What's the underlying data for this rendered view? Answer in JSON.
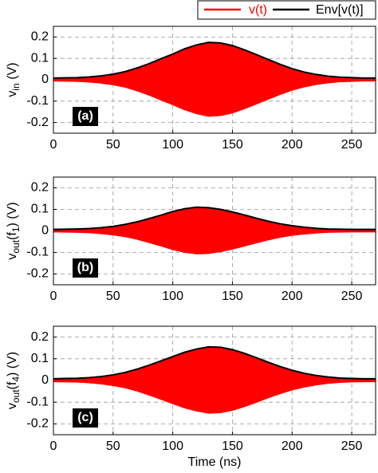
{
  "chart_data": [
    {
      "type": "line",
      "label": "(a)",
      "ylabel": [
        "v",
        "in",
        " (V)"
      ],
      "legend": "top-right",
      "grid": true,
      "x": [
        0,
        10,
        20,
        30,
        40,
        50,
        60,
        70,
        80,
        90,
        100,
        110,
        120,
        130,
        140,
        150,
        160,
        170,
        180,
        190,
        200,
        210,
        220,
        230,
        240,
        250,
        260,
        270
      ],
      "xlim": [
        0,
        270
      ],
      "xticks": [
        0,
        50,
        100,
        150,
        200,
        250
      ],
      "ylim": [
        -0.25,
        0.25
      ],
      "yticks": [
        -0.2,
        -0.1,
        0,
        0.1,
        0.2
      ],
      "series": [
        {
          "name": "v(t)",
          "color": "#ff0000",
          "fill": true,
          "values": [
            0.006,
            0.007,
            0.008,
            0.011,
            0.016,
            0.024,
            0.035,
            0.052,
            0.072,
            0.095,
            0.117,
            0.141,
            0.159,
            0.171,
            0.168,
            0.156,
            0.136,
            0.114,
            0.091,
            0.069,
            0.049,
            0.034,
            0.023,
            0.015,
            0.01,
            0.008,
            0.006,
            0.006
          ]
        },
        {
          "name": "Env[v(t)]",
          "color": "#000000",
          "fill": false,
          "values": [
            0.008,
            0.009,
            0.01,
            0.013,
            0.018,
            0.026,
            0.038,
            0.055,
            0.075,
            0.098,
            0.12,
            0.145,
            0.163,
            0.175,
            0.172,
            0.16,
            0.14,
            0.118,
            0.095,
            0.072,
            0.052,
            0.036,
            0.025,
            0.017,
            0.012,
            0.01,
            0.008,
            0.008
          ]
        }
      ]
    },
    {
      "type": "line",
      "label": "(b)",
      "ylabel": [
        "v",
        "out",
        "(f",
        "1",
        ") (V)"
      ],
      "grid": true,
      "x": [
        0,
        10,
        20,
        30,
        40,
        50,
        60,
        70,
        80,
        90,
        100,
        110,
        120,
        130,
        140,
        150,
        160,
        170,
        180,
        190,
        200,
        210,
        220,
        230,
        240,
        250,
        260,
        270
      ],
      "xlim": [
        0,
        270
      ],
      "xticks": [
        0,
        50,
        100,
        150,
        200,
        250
      ],
      "ylim": [
        -0.25,
        0.25
      ],
      "yticks": [
        -0.2,
        -0.1,
        0,
        0.1,
        0.2
      ],
      "series": [
        {
          "name": "v(t)",
          "color": "#ff0000",
          "fill": true,
          "values": [
            0.005,
            0.006,
            0.007,
            0.009,
            0.013,
            0.019,
            0.027,
            0.039,
            0.054,
            0.07,
            0.087,
            0.1,
            0.107,
            0.105,
            0.097,
            0.085,
            0.071,
            0.056,
            0.042,
            0.03,
            0.021,
            0.015,
            0.01,
            0.007,
            0.006,
            0.005,
            0.005,
            0.005
          ]
        },
        {
          "name": "Env[v(t)]",
          "color": "#000000",
          "fill": false,
          "values": [
            0.007,
            0.008,
            0.009,
            0.011,
            0.015,
            0.021,
            0.03,
            0.042,
            0.057,
            0.073,
            0.09,
            0.103,
            0.11,
            0.108,
            0.1,
            0.088,
            0.074,
            0.059,
            0.045,
            0.033,
            0.024,
            0.017,
            0.012,
            0.009,
            0.008,
            0.007,
            0.007,
            0.007
          ]
        }
      ]
    },
    {
      "type": "line",
      "label": "(c)",
      "ylabel": [
        "v",
        "out",
        "(f",
        "4",
        ") (V)"
      ],
      "grid": true,
      "xlabel": "Time (ns)",
      "x": [
        0,
        10,
        20,
        30,
        40,
        50,
        60,
        70,
        80,
        90,
        100,
        110,
        120,
        130,
        140,
        150,
        160,
        170,
        180,
        190,
        200,
        210,
        220,
        230,
        240,
        250,
        260,
        270
      ],
      "xlim": [
        0,
        270
      ],
      "xticks": [
        0,
        50,
        100,
        150,
        200,
        250
      ],
      "ylim": [
        -0.25,
        0.25
      ],
      "yticks": [
        -0.2,
        -0.1,
        0,
        0.1,
        0.2
      ],
      "series": [
        {
          "name": "v(t)",
          "color": "#ff0000",
          "fill": true,
          "values": [
            0.006,
            0.007,
            0.008,
            0.011,
            0.016,
            0.024,
            0.034,
            0.049,
            0.067,
            0.087,
            0.107,
            0.127,
            0.141,
            0.151,
            0.149,
            0.138,
            0.121,
            0.101,
            0.08,
            0.061,
            0.044,
            0.031,
            0.021,
            0.014,
            0.009,
            0.007,
            0.006,
            0.006
          ]
        },
        {
          "name": "Env[v(t)]",
          "color": "#000000",
          "fill": false,
          "values": [
            0.008,
            0.009,
            0.01,
            0.013,
            0.018,
            0.026,
            0.037,
            0.052,
            0.07,
            0.09,
            0.11,
            0.13,
            0.145,
            0.155,
            0.153,
            0.142,
            0.125,
            0.105,
            0.084,
            0.064,
            0.047,
            0.033,
            0.023,
            0.016,
            0.011,
            0.009,
            0.008,
            0.008
          ]
        }
      ]
    }
  ]
}
